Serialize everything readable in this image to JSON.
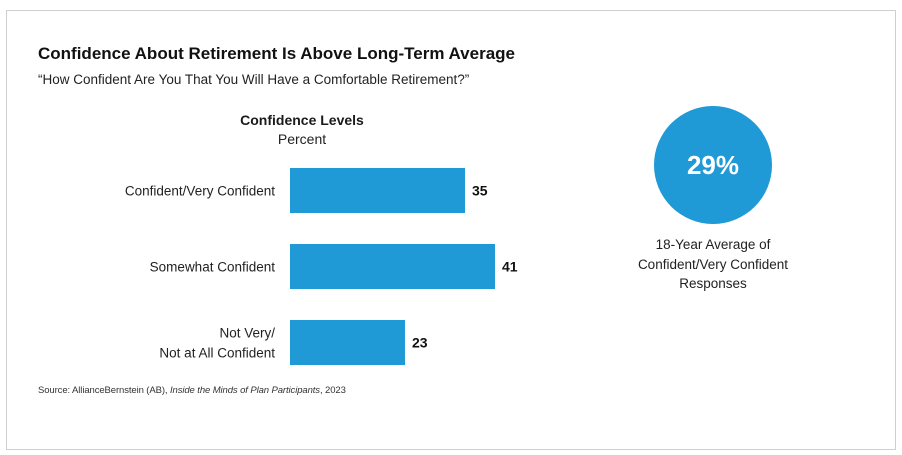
{
  "title": "Confidence About Retirement Is Above Long-Term Average",
  "subtitle": "“How Confident Are You That You Will Have a Comfortable Retirement?”",
  "chart_data": {
    "type": "bar",
    "orientation": "horizontal",
    "title": "Confidence Levels",
    "unit_label": "Percent",
    "categories": [
      [
        "Confident/Very Confident"
      ],
      [
        "Somewhat Confident"
      ],
      [
        "Not Very/",
        "Not at All Confident"
      ]
    ],
    "values": [
      35,
      41,
      23
    ],
    "value_labels_shown": true,
    "bar_color": "#1f9ad6",
    "grid": false,
    "legend": "none"
  },
  "highlight": {
    "value": "29%",
    "caption": [
      "18-Year Average of",
      "Confident/Very Confident",
      "Responses"
    ],
    "color": "#1f9ad6"
  },
  "source": {
    "prefix": "Source: AllianceBernstein (AB), ",
    "publication": "Inside the Minds of Plan Participants",
    "suffix": ", 2023"
  }
}
